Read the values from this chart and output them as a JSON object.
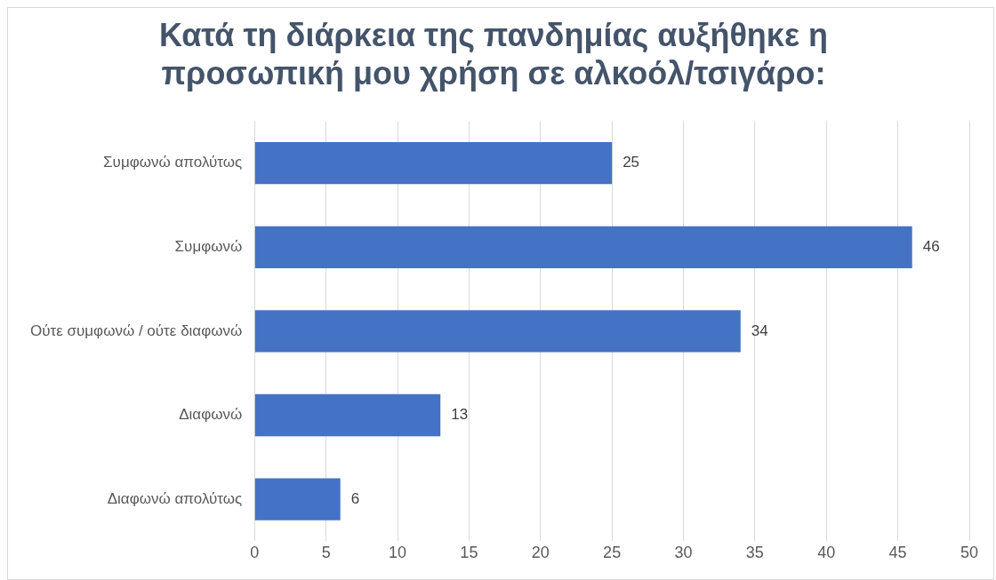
{
  "chart_data": {
    "type": "bar",
    "orientation": "horizontal",
    "title": "Κατά τη διάρκεια της πανδημίας αυξήθηκε η προσωπική μου χρήση σε αλκοόλ/τσιγάρο:",
    "categories": [
      "Συμφωνώ απολύτως",
      "Συμφωνώ",
      "Ούτε συμφωνώ / ούτε διαφωνώ",
      "Διαφωνώ",
      "Διαφωνώ απολύτως"
    ],
    "values": [
      25,
      46,
      34,
      13,
      6
    ],
    "color": "#4472c4",
    "xlim": [
      0,
      50
    ],
    "xticks": [
      0,
      5,
      10,
      15,
      20,
      25,
      30,
      35,
      40,
      45,
      50
    ],
    "grid": "x",
    "data_labels": true
  }
}
